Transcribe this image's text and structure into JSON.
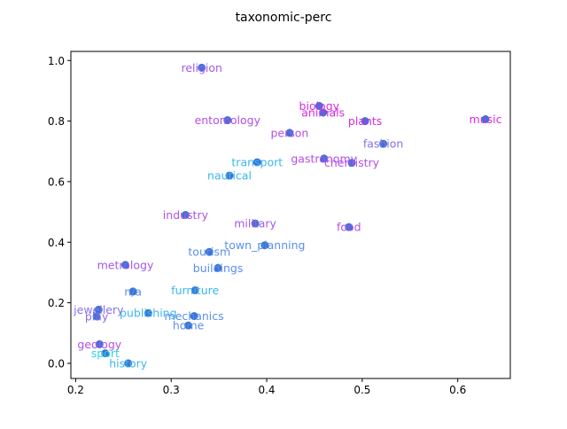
{
  "chart_data": {
    "type": "scatter",
    "title": "taxonomic-perc",
    "xlabel": "",
    "ylabel": "",
    "xlim": [
      0.195,
      0.655
    ],
    "ylim": [
      -0.05,
      1.03
    ],
    "xticks": [
      "0.2",
      "0.3",
      "0.4",
      "0.5",
      "0.6"
    ],
    "yticks": [
      "0.0",
      "0.2",
      "0.4",
      "0.6",
      "0.8",
      "1.0"
    ],
    "grid": false,
    "point_color": "#3a74d6",
    "points": [
      {
        "label": "religion",
        "x": 0.332,
        "y": 0.976,
        "color": "#a459e8"
      },
      {
        "label": "biology",
        "x": 0.455,
        "y": 0.85,
        "color": "#d52ce2"
      },
      {
        "label": "animals",
        "x": 0.459,
        "y": 0.828,
        "color": "#d52ce2"
      },
      {
        "label": "plants",
        "x": 0.503,
        "y": 0.8,
        "color": "#d52ce2"
      },
      {
        "label": "music",
        "x": 0.629,
        "y": 0.806,
        "color": "#d52ce2"
      },
      {
        "label": "entomology",
        "x": 0.359,
        "y": 0.803,
        "color": "#b44fe6"
      },
      {
        "label": "person",
        "x": 0.424,
        "y": 0.761,
        "color": "#b44fe6"
      },
      {
        "label": "fashion",
        "x": 0.522,
        "y": 0.725,
        "color": "#8a6fe8"
      },
      {
        "label": "gastronomy",
        "x": 0.46,
        "y": 0.676,
        "color": "#b44fe6"
      },
      {
        "label": "chemistry",
        "x": 0.489,
        "y": 0.662,
        "color": "#b44fe6"
      },
      {
        "label": "transport",
        "x": 0.39,
        "y": 0.664,
        "color": "#3cb6ee"
      },
      {
        "label": "nautical",
        "x": 0.361,
        "y": 0.62,
        "color": "#3cb6ee"
      },
      {
        "label": "industry",
        "x": 0.315,
        "y": 0.49,
        "color": "#b44fe6"
      },
      {
        "label": "military",
        "x": 0.388,
        "y": 0.462,
        "color": "#a459e8"
      },
      {
        "label": "food",
        "x": 0.486,
        "y": 0.45,
        "color": "#b44fe6"
      },
      {
        "label": "town_planning",
        "x": 0.398,
        "y": 0.39,
        "color": "#5b8fec"
      },
      {
        "label": "tourism",
        "x": 0.34,
        "y": 0.368,
        "color": "#5b8fec"
      },
      {
        "label": "metrology",
        "x": 0.252,
        "y": 0.325,
        "color": "#a459e8"
      },
      {
        "label": "buildings",
        "x": 0.349,
        "y": 0.315,
        "color": "#5b8fec"
      },
      {
        "label": "n/a",
        "x": 0.26,
        "y": 0.237,
        "color": "#5b8fec"
      },
      {
        "label": "furniture",
        "x": 0.325,
        "y": 0.241,
        "color": "#3cb6ee"
      },
      {
        "label": "jewellery",
        "x": 0.224,
        "y": 0.177,
        "color": "#8a6fe8"
      },
      {
        "label": "play",
        "x": 0.222,
        "y": 0.155,
        "color": "#8a6fe8"
      },
      {
        "label": "publishing",
        "x": 0.276,
        "y": 0.166,
        "color": "#3cb6ee"
      },
      {
        "label": "mechanics",
        "x": 0.324,
        "y": 0.156,
        "color": "#5b8fec"
      },
      {
        "label": "home",
        "x": 0.318,
        "y": 0.125,
        "color": "#5b8fec"
      },
      {
        "label": "geology",
        "x": 0.225,
        "y": 0.063,
        "color": "#b44fe6"
      },
      {
        "label": "sport",
        "x": 0.231,
        "y": 0.033,
        "color": "#2dd3e8"
      },
      {
        "label": "history",
        "x": 0.255,
        "y": 0.0,
        "color": "#3cb6ee"
      }
    ]
  }
}
